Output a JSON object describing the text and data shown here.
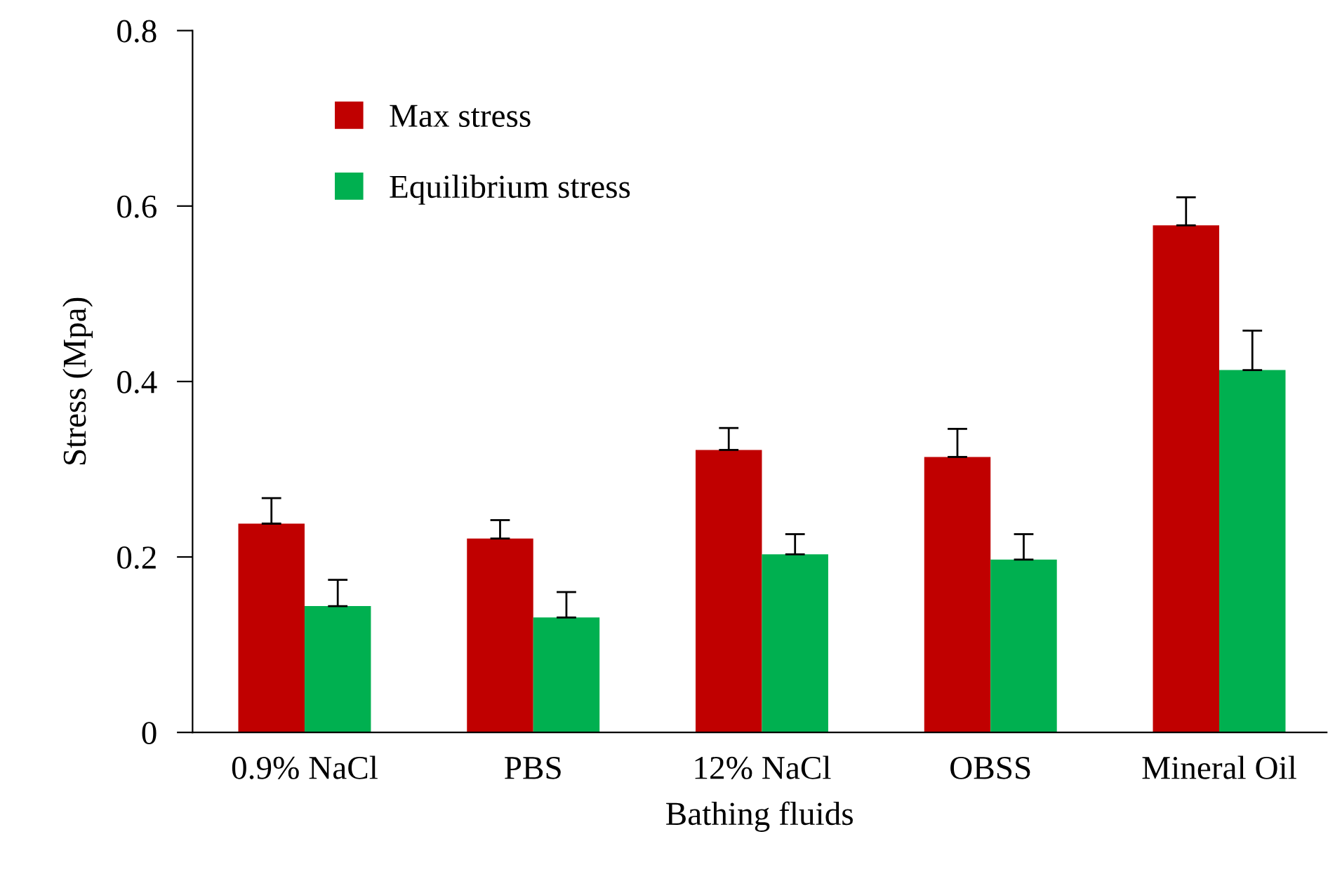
{
  "chart_data": {
    "type": "bar",
    "xlabel": "Bathing fluids",
    "ylabel": "Stress (Mpa)",
    "categories": [
      "0.9% NaCl",
      "PBS",
      "12% NaCl",
      "OBSS",
      "Mineral Oil"
    ],
    "series": [
      {
        "name": "Max stress",
        "color": "#c00000",
        "values": [
          0.238,
          0.221,
          0.322,
          0.314,
          0.578
        ],
        "errors": [
          [
            0.238,
            0.267
          ],
          [
            0.221,
            0.242
          ],
          [
            0.322,
            0.347
          ],
          [
            0.314,
            0.346
          ],
          [
            0.578,
            0.61
          ]
        ]
      },
      {
        "name": "Equilibrium stress",
        "color": "#00b050",
        "values": [
          0.144,
          0.131,
          0.203,
          0.197,
          0.413
        ],
        "errors": [
          [
            0.144,
            0.174
          ],
          [
            0.131,
            0.16
          ],
          [
            0.203,
            0.226
          ],
          [
            0.197,
            0.226
          ],
          [
            0.413,
            0.458
          ]
        ]
      }
    ],
    "ylim": [
      0,
      0.8
    ],
    "yticks": [
      {
        "value": 0,
        "label": "0"
      },
      0.2,
      0.4,
      0.6,
      0.8
    ],
    "grid": false,
    "legend": "top left"
  }
}
